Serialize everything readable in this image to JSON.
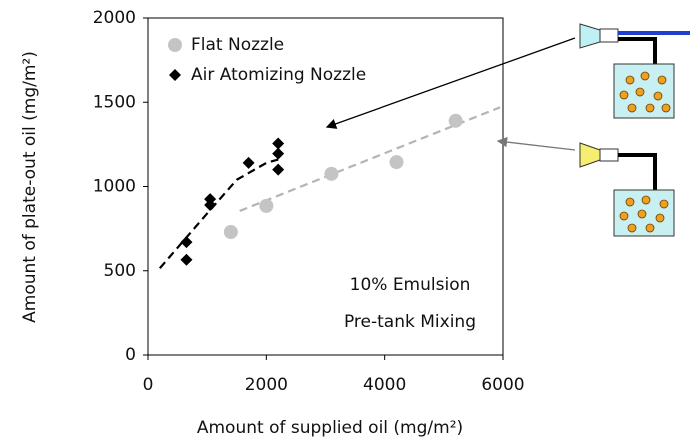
{
  "chart_data": {
    "type": "scatter",
    "ylabel": "Amount of plate-out oil (mg/m²)",
    "xlabel": "Amount of supplied oil (mg/m²)",
    "xlim": [
      0,
      6000
    ],
    "xticks": [
      0,
      2000,
      4000,
      6000
    ],
    "ylim": [
      0,
      2000
    ],
    "yticks": [
      0,
      500,
      1000,
      1500,
      2000
    ],
    "series": [
      {
        "name": "Flat Nozzle",
        "color": "#c4c4c4",
        "marker": "circle",
        "x": [
          1400,
          2000,
          3100,
          4200,
          5200
        ],
        "values": [
          730,
          885,
          1075,
          1145,
          1390
        ]
      },
      {
        "name": "Air Atomizing Nozzle",
        "color": "#000000",
        "marker": "diamond",
        "x": [
          650,
          650,
          1050,
          1050,
          1700,
          2200,
          2200,
          2200
        ],
        "values": [
          670,
          565,
          925,
          890,
          1140,
          1255,
          1195,
          1100
        ]
      }
    ],
    "trendlines": [
      {
        "color": "#000000",
        "x": [
          200,
          1000,
          1500,
          2000,
          2200
        ],
        "values": [
          515,
          840,
          1040,
          1140,
          1160
        ]
      },
      {
        "color": "#b4b4b4",
        "x": [
          1550,
          5950
        ],
        "values": [
          855,
          1470
        ]
      }
    ],
    "annotations": [
      "10% Emulsion",
      "Pre-tank Mixing"
    ]
  }
}
